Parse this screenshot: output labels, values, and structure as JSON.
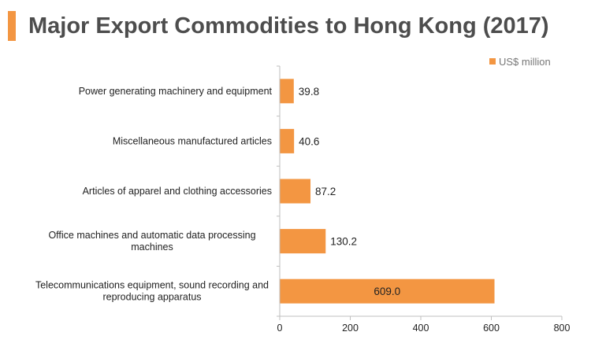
{
  "title": "Major Export Commodities to Hong Kong (2017)",
  "colors": {
    "accent": "#f39642",
    "bar": "#f39642",
    "title_text": "#4d4d4d",
    "axis": "#bfbfbf"
  },
  "chart_data": {
    "type": "bar",
    "orientation": "horizontal",
    "title": "Major Export Commodities to Hong Kong (2017)",
    "categories": [
      [
        "Power generating machinery and equipment"
      ],
      [
        "Miscellaneous manufactured articles"
      ],
      [
        "Articles of apparel and clothing accessories"
      ],
      [
        "Office machines and automatic data processing",
        "machines"
      ],
      [
        "Telecommunications equipment, sound recording and",
        "reproducing apparatus"
      ]
    ],
    "series": [
      {
        "name": "US$ million",
        "values": [
          39.8,
          40.6,
          87.2,
          130.2,
          609.0
        ],
        "labels": [
          "39.8",
          "40.6",
          "87.2",
          "130.2",
          "609.0"
        ]
      }
    ],
    "xlim": [
      0,
      800
    ],
    "xticks": [
      0,
      200,
      400,
      600,
      800
    ],
    "legend": "top-right",
    "grid": false
  }
}
